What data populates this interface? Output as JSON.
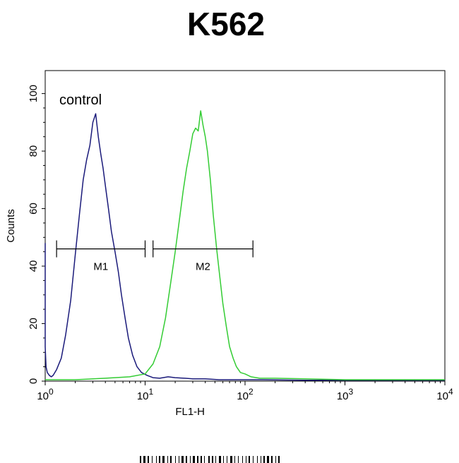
{
  "chart_data": {
    "type": "line",
    "title": "K562",
    "xlabel": "FL1-H",
    "ylabel": "Counts",
    "xscale": "log",
    "xlim": [
      1,
      10000
    ],
    "ylim": [
      0,
      108
    ],
    "xticks": [
      {
        "base": "10",
        "exp": "0"
      },
      {
        "base": "10",
        "exp": "1"
      },
      {
        "base": "10",
        "exp": "2"
      },
      {
        "base": "10",
        "exp": "3"
      },
      {
        "base": "10",
        "exp": "4"
      }
    ],
    "yticks": [
      "0",
      "20",
      "40",
      "60",
      "80",
      "100"
    ],
    "annotation": "control",
    "markers": [
      {
        "label": "M1",
        "x_start": 1.3,
        "x_end": 10,
        "y": 46
      },
      {
        "label": "M2",
        "x_start": 12,
        "x_end": 120,
        "y": 46
      }
    ],
    "series": [
      {
        "color": "#1a1a7a",
        "x": [
          1.0,
          1.0,
          1.02,
          1.05,
          1.1,
          1.15,
          1.2,
          1.3,
          1.45,
          1.6,
          1.8,
          2.0,
          2.2,
          2.4,
          2.6,
          2.8,
          3.0,
          3.2,
          3.4,
          3.6,
          3.8,
          4.0,
          4.3,
          4.6,
          5.0,
          5.4,
          5.8,
          6.3,
          6.8,
          7.5,
          8.3,
          9.2,
          10.5,
          12,
          14,
          17,
          20,
          25,
          30,
          40,
          55,
          80,
          150,
          400,
          10000
        ],
        "y": [
          48,
          12,
          5,
          3,
          2,
          1.5,
          2,
          4,
          8,
          16,
          28,
          44,
          58,
          70,
          77,
          82,
          90,
          93,
          85,
          79,
          74,
          68,
          60,
          52,
          45,
          38,
          30,
          22,
          15,
          9,
          5,
          3,
          2,
          1.2,
          1.0,
          1.5,
          1.2,
          1.0,
          0.8,
          0.8,
          0.5,
          0.5,
          0.5,
          0.3,
          0.3
        ]
      },
      {
        "color": "#33cc33",
        "x": [
          1.0,
          2.0,
          4.0,
          7.0,
          10.0,
          12.0,
          14.0,
          16.0,
          18.0,
          20.0,
          22.0,
          24.0,
          26.0,
          28.0,
          30.0,
          32.0,
          34.0,
          36.0,
          38.0,
          40.0,
          42.0,
          45.0,
          48.0,
          52.0,
          56.0,
          60.0,
          65.0,
          70.0,
          76.0,
          82.0,
          90.0,
          100.0,
          115.0,
          140.0,
          200.0,
          400.0,
          1000.0,
          10000.0
        ],
        "y": [
          0.5,
          0.5,
          1.0,
          1.5,
          2.5,
          6,
          12,
          22,
          34,
          45,
          56,
          66,
          74,
          80,
          86,
          88,
          87,
          94,
          89,
          85,
          80,
          70,
          58,
          46,
          36,
          27,
          19,
          12,
          8,
          5,
          3,
          2.5,
          1.5,
          1.0,
          1.0,
          0.8,
          0.5,
          0.5
        ]
      }
    ]
  }
}
